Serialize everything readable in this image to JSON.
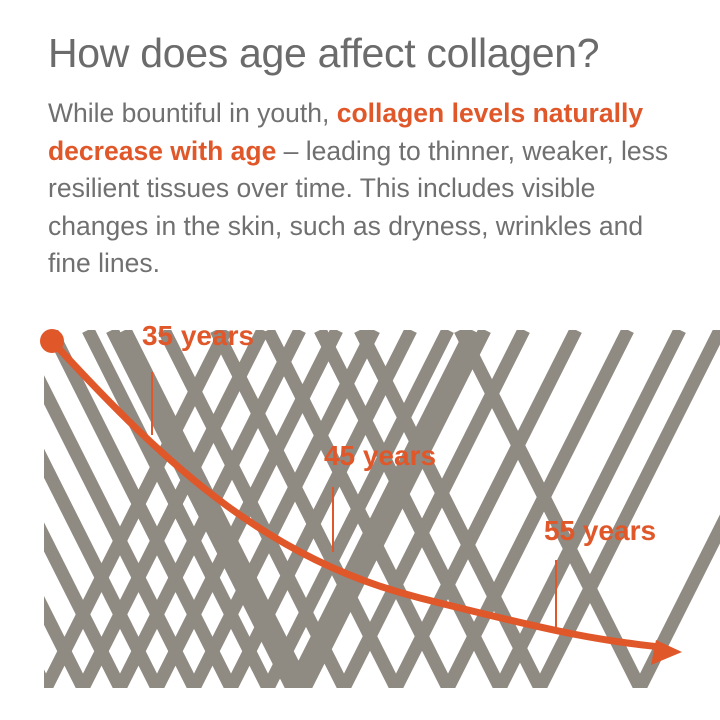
{
  "header": {
    "title": "How does age affect collagen?"
  },
  "intro": {
    "part1": "While bountiful in youth, ",
    "highlight": "collagen levels naturally decrease with age",
    "part2": " – leading to thinner, weaker, less resilient tissues over time. This includes visible changes in the skin, such as dryness, wrinkles and fine lines."
  },
  "colors": {
    "accent": "#e0572a",
    "fiber": "#8f8a82",
    "text": "#707070",
    "title": "#6b6b6b"
  },
  "chart_data": {
    "type": "line",
    "title": "",
    "xlabel": "",
    "ylabel": "",
    "axes_shown": false,
    "grid": false,
    "annotations": [
      {
        "label": "35 years",
        "relative_level": 0.64
      },
      {
        "label": "45 years",
        "relative_level": 0.32
      },
      {
        "label": "55 years",
        "relative_level": 0.12
      }
    ],
    "series": [
      {
        "values": [
          1.0,
          0.64,
          0.32,
          0.12
        ]
      }
    ]
  }
}
